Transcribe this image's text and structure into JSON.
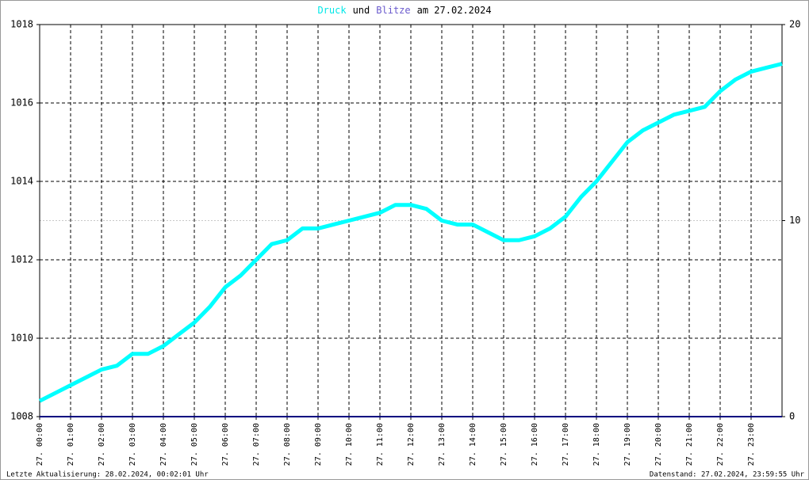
{
  "chart_data": {
    "type": "line",
    "title": [
      {
        "text": "Druck",
        "color": "#00e8e8"
      },
      {
        "text": "und",
        "color": "#000000"
      },
      {
        "text": "Blitze",
        "color": "#6a5acd"
      },
      {
        "text": "am 27.02.2024",
        "color": "#000000"
      }
    ],
    "x": [
      0,
      0.5,
      1,
      1.5,
      2,
      2.5,
      3,
      3.5,
      4,
      4.5,
      5,
      5.5,
      6,
      6.5,
      7,
      7.5,
      8,
      8.5,
      9,
      9.5,
      10,
      10.5,
      11,
      11.5,
      12,
      12.5,
      13,
      13.5,
      14,
      14.5,
      15,
      15.5,
      16,
      16.5,
      17,
      17.5,
      18,
      18.5,
      19,
      19.5,
      20,
      20.5,
      21,
      21.5,
      22,
      22.5,
      23,
      23.5,
      24
    ],
    "series": [
      {
        "name": "Druck",
        "color": "#00ffff",
        "values": [
          1008.4,
          1008.6,
          1008.8,
          1009.0,
          1009.2,
          1009.3,
          1009.6,
          1009.6,
          1009.8,
          1010.1,
          1010.4,
          1010.8,
          1011.3,
          1011.6,
          1012.0,
          1012.4,
          1012.5,
          1012.8,
          1012.8,
          1012.9,
          1013.0,
          1013.1,
          1013.2,
          1013.4,
          1013.4,
          1013.3,
          1013.0,
          1012.9,
          1012.9,
          1012.7,
          1012.5,
          1012.5,
          1012.6,
          1012.8,
          1013.1,
          1013.6,
          1014.0,
          1014.5,
          1015.0,
          1015.3,
          1015.5,
          1015.7,
          1015.8,
          1015.9,
          1016.3,
          1016.6,
          1016.8,
          1016.9,
          1017.0
        ]
      },
      {
        "name": "Blitze",
        "color": "#000080",
        "axis": "y2",
        "values": [
          0,
          0,
          0,
          0,
          0,
          0,
          0,
          0,
          0,
          0,
          0,
          0,
          0,
          0,
          0,
          0,
          0,
          0,
          0,
          0,
          0,
          0,
          0,
          0,
          0,
          0,
          0,
          0,
          0,
          0,
          0,
          0,
          0,
          0,
          0,
          0,
          0,
          0,
          0,
          0,
          0,
          0,
          0,
          0,
          0,
          0,
          0,
          0,
          0
        ]
      }
    ],
    "xlim": [
      0,
      24
    ],
    "xticks": [
      {
        "value": 0,
        "label": "27. 00:00"
      },
      {
        "value": 1,
        "label": "27. 01:00"
      },
      {
        "value": 2,
        "label": "27. 02:00"
      },
      {
        "value": 3,
        "label": "27. 03:00"
      },
      {
        "value": 4,
        "label": "27. 04:00"
      },
      {
        "value": 5,
        "label": "27. 05:00"
      },
      {
        "value": 6,
        "label": "27. 06:00"
      },
      {
        "value": 7,
        "label": "27. 07:00"
      },
      {
        "value": 8,
        "label": "27. 08:00"
      },
      {
        "value": 9,
        "label": "27. 09:00"
      },
      {
        "value": 10,
        "label": "27. 10:00"
      },
      {
        "value": 11,
        "label": "27. 11:00"
      },
      {
        "value": 12,
        "label": "27. 12:00"
      },
      {
        "value": 13,
        "label": "27. 13:00"
      },
      {
        "value": 14,
        "label": "27. 14:00"
      },
      {
        "value": 15,
        "label": "27. 15:00"
      },
      {
        "value": 16,
        "label": "27. 16:00"
      },
      {
        "value": 17,
        "label": "27. 17:00"
      },
      {
        "value": 18,
        "label": "27. 18:00"
      },
      {
        "value": 19,
        "label": "27. 19:00"
      },
      {
        "value": 20,
        "label": "27. 20:00"
      },
      {
        "value": 21,
        "label": "27. 21:00"
      },
      {
        "value": 22,
        "label": "27. 22:00"
      },
      {
        "value": 23,
        "label": "27. 23:00"
      }
    ],
    "ylim": [
      1008,
      1018
    ],
    "yticks": [
      1008,
      1010,
      1012,
      1014,
      1016,
      1018
    ],
    "y2lim": [
      0,
      20
    ],
    "y2ticks": [
      0,
      10,
      20
    ],
    "grid": true,
    "footer_left": "Letzte Aktualisierung: 28.02.2024, 00:02:01 Uhr",
    "footer_right": "Datenstand: 27.02.2024, 23:59:55 Uhr"
  }
}
